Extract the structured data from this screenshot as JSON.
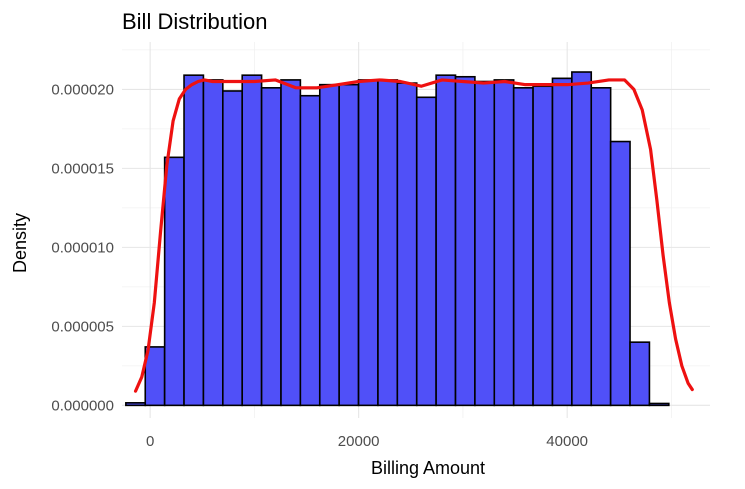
{
  "chart_data": {
    "type": "histogram",
    "title": "Bill Distribution",
    "xlabel": "Billing Amount",
    "ylabel": "Density",
    "xlim": [
      -2700,
      53700
    ],
    "ylim": [
      -8e-07,
      2.3e-05
    ],
    "x_ticks": [
      {
        "value": 0,
        "label": "0"
      },
      {
        "value": 20000,
        "label": "20000"
      },
      {
        "value": 40000,
        "label": "40000"
      }
    ],
    "y_ticks": [
      {
        "value": 0,
        "label": "0.000000"
      },
      {
        "value": 5e-06,
        "label": "0.000005"
      },
      {
        "value": 1e-05,
        "label": "0.000010"
      },
      {
        "value": 1.5e-05,
        "label": "0.000015"
      },
      {
        "value": 2e-05,
        "label": "0.000020"
      }
    ],
    "bin_start": -2330,
    "bin_width": 1860,
    "bin_values": [
      1.6e-07,
      3.7e-06,
      1.57e-05,
      2.09e-05,
      2.06e-05,
      1.99e-05,
      2.09e-05,
      2.01e-05,
      2.06e-05,
      1.96e-05,
      2.03e-05,
      2.03e-05,
      2.06e-05,
      2.06e-05,
      2.04e-05,
      1.95e-05,
      2.09e-05,
      2.08e-05,
      2.05e-05,
      2.06e-05,
      2.01e-05,
      2.02e-05,
      2.07e-05,
      2.11e-05,
      2.01e-05,
      1.67e-05,
      4e-06,
      1.2e-07
    ],
    "density_curve": {
      "x": [
        -1400,
        -800,
        -200,
        400,
        1000,
        1600,
        2200,
        2800,
        3400,
        4000,
        4600,
        5200,
        6000,
        8000,
        10000,
        12000,
        14000,
        16000,
        18000,
        20000,
        22000,
        24000,
        26000,
        28000,
        30000,
        32000,
        34000,
        36000,
        38000,
        40000,
        42000,
        44000,
        45500,
        46400,
        47200,
        48000,
        48600,
        49200,
        49800,
        50400,
        51000,
        51600,
        52000
      ],
      "y": [
        9e-07,
        1.8e-06,
        3.5e-06,
        6.5e-06,
        1.1e-05,
        1.52e-05,
        1.8e-05,
        1.94e-05,
        2e-05,
        2.03e-05,
        2.05e-05,
        2.06e-05,
        2.05e-05,
        2.05e-05,
        2.05e-05,
        2.06e-05,
        2.01e-05,
        2.01e-05,
        2.03e-05,
        2.05e-05,
        2.06e-05,
        2.05e-05,
        2.02e-05,
        2.06e-05,
        2.05e-05,
        2.04e-05,
        2.05e-05,
        2.03e-05,
        2.03e-05,
        2.03e-05,
        2.04e-05,
        2.06e-05,
        2.06e-05,
        2e-05,
        1.87e-05,
        1.62e-05,
        1.3e-05,
        9.5e-06,
        6.5e-06,
        4.2e-06,
        2.5e-06,
        1.4e-06,
        1e-06
      ]
    },
    "colors": {
      "bar_fill": "#5050f8",
      "bar_edge": "#000000",
      "line": "#ee1111",
      "grid": "#e6e6e6",
      "background": "#ffffff"
    },
    "grid": true
  }
}
